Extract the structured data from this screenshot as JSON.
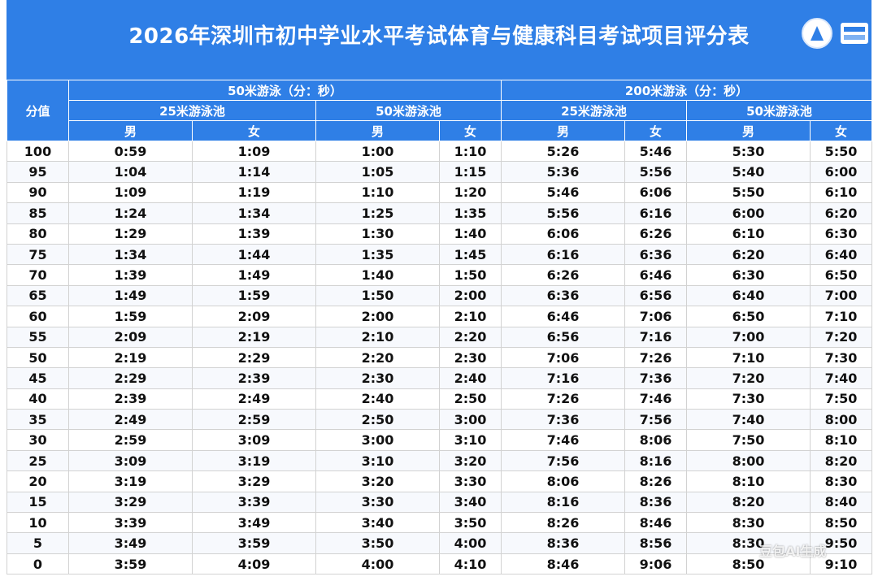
{
  "title": "2026年深圳市初中学业水平考试体育与健康科目考试项目评分表",
  "header": {
    "score": "分值",
    "event_50": "50米游泳（分：秒）",
    "event_200": "200米游泳（分：秒）",
    "pool_25": "25米游泳池",
    "pool_50": "50米游泳池",
    "male": "男",
    "female": "女"
  },
  "watermark": "豆包AI生成",
  "colors": {
    "header_blue": "#2f7fe6",
    "grid": "#d2d2d2"
  },
  "rows": [
    [
      "100",
      "0:59",
      "1:09",
      "1:00",
      "1:10",
      "5:26",
      "5:46",
      "5:30",
      "5:50"
    ],
    [
      "95",
      "1:04",
      "1:14",
      "1:05",
      "1:15",
      "5:36",
      "5:56",
      "5:40",
      "6:00"
    ],
    [
      "90",
      "1:09",
      "1:19",
      "1:10",
      "1:20",
      "5:46",
      "6:06",
      "5:50",
      "6:10"
    ],
    [
      "85",
      "1:24",
      "1:34",
      "1:25",
      "1:35",
      "5:56",
      "6:16",
      "6:00",
      "6:20"
    ],
    [
      "80",
      "1:29",
      "1:39",
      "1:30",
      "1:40",
      "6:06",
      "6:26",
      "6:10",
      "6:30"
    ],
    [
      "75",
      "1:34",
      "1:44",
      "1:35",
      "1:45",
      "6:16",
      "6:36",
      "6:20",
      "6:40"
    ],
    [
      "70",
      "1:39",
      "1:49",
      "1:40",
      "1:50",
      "6:26",
      "6:46",
      "6:30",
      "6:50"
    ],
    [
      "65",
      "1:49",
      "1:59",
      "1:50",
      "2:00",
      "6:36",
      "6:56",
      "6:40",
      "7:00"
    ],
    [
      "60",
      "1:59",
      "2:09",
      "2:00",
      "2:10",
      "6:46",
      "7:06",
      "6:50",
      "7:10"
    ],
    [
      "55",
      "2:09",
      "2:19",
      "2:10",
      "2:20",
      "6:56",
      "7:16",
      "7:00",
      "7:20"
    ],
    [
      "50",
      "2:19",
      "2:29",
      "2:20",
      "2:30",
      "7:06",
      "7:26",
      "7:10",
      "7:30"
    ],
    [
      "45",
      "2:29",
      "2:39",
      "2:30",
      "2:40",
      "7:16",
      "7:36",
      "7:20",
      "7:40"
    ],
    [
      "40",
      "2:39",
      "2:49",
      "2:40",
      "2:50",
      "7:26",
      "7:46",
      "7:30",
      "7:50"
    ],
    [
      "35",
      "2:49",
      "2:59",
      "2:50",
      "3:00",
      "7:36",
      "7:56",
      "7:40",
      "8:00"
    ],
    [
      "30",
      "2:59",
      "3:09",
      "3:00",
      "3:10",
      "7:46",
      "8:06",
      "7:50",
      "8:10"
    ],
    [
      "25",
      "3:09",
      "3:19",
      "3:10",
      "3:20",
      "7:56",
      "8:16",
      "8:00",
      "8:20"
    ],
    [
      "20",
      "3:19",
      "3:29",
      "3:20",
      "3:30",
      "8:06",
      "8:26",
      "8:10",
      "8:30"
    ],
    [
      "15",
      "3:29",
      "3:39",
      "3:30",
      "3:40",
      "8:16",
      "8:36",
      "8:20",
      "8:40"
    ],
    [
      "10",
      "3:39",
      "3:49",
      "3:40",
      "3:50",
      "8:26",
      "8:46",
      "8:30",
      "8:50"
    ],
    [
      "5",
      "3:49",
      "3:59",
      "3:50",
      "4:00",
      "8:36",
      "8:56",
      "8:30",
      "9:50"
    ],
    [
      "0",
      "3:59",
      "4:09",
      "4:00",
      "4:10",
      "8:46",
      "9:06",
      "8:50",
      "9:10"
    ]
  ]
}
